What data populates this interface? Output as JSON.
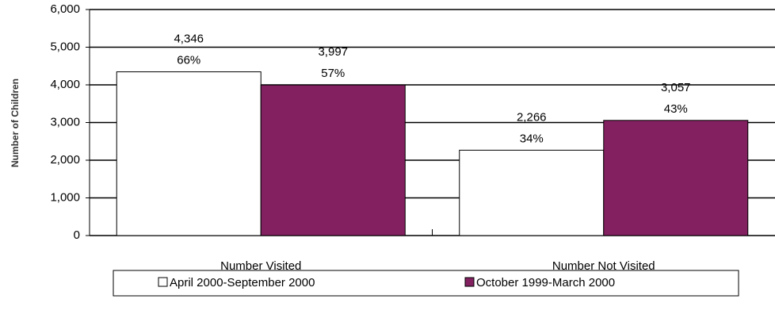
{
  "chart_data": {
    "type": "bar",
    "y_label": "Number of Children",
    "categories": [
      "Number Visited",
      "Number Not Visited"
    ],
    "series": [
      {
        "name": "April 2000-September 2000",
        "color": "#ffffff",
        "values": [
          4346,
          2266
        ],
        "value_labels": [
          "4,346",
          "2,266"
        ],
        "shares": [
          66,
          34
        ],
        "share_labels": [
          "66%",
          "34%"
        ]
      },
      {
        "name": "October 1999-March 2000",
        "color": "#822060",
        "values": [
          3997,
          3057
        ],
        "value_labels": [
          "3,997",
          "3,057"
        ],
        "shares": [
          57,
          43
        ],
        "share_labels": [
          "57%",
          "43%"
        ]
      }
    ],
    "ylim": [
      0,
      6000
    ],
    "yticks": [
      0,
      {
        "value": 1000,
        "label": "1,000"
      },
      {
        "value": 2000,
        "label": "2,000"
      },
      {
        "value": 3000,
        "label": "3,000"
      },
      {
        "value": 4000,
        "label": "4,000"
      },
      {
        "value": 5000,
        "label": "5,000"
      },
      {
        "value": 6000,
        "label": "6,000"
      }
    ],
    "grid": true,
    "legend": "bottom"
  }
}
